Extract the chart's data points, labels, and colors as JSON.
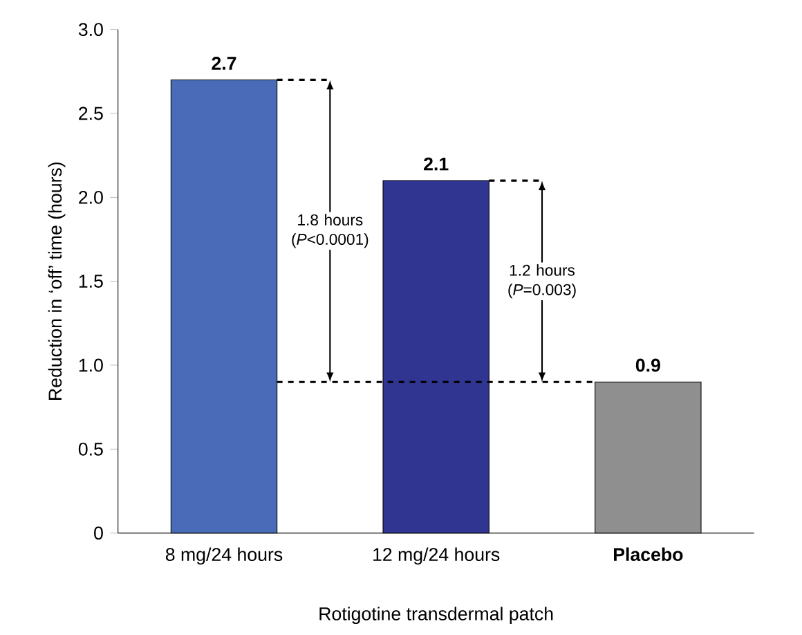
{
  "chart_data": {
    "type": "bar",
    "categories": [
      "8 mg/24 hours",
      "12 mg/24 hours",
      "**Placebo**"
    ],
    "values": [
      2.7,
      2.1,
      0.9
    ],
    "colors": [
      "#4a6cb8",
      "#2f3590",
      "#8f8f8f"
    ],
    "data_labels": true,
    "xlabel": "Rotigotine transdermal patch",
    "ylabel": "Reduction in ‘off’ time (hours)",
    "ylim": [
      0,
      3
    ],
    "yticks": [
      0,
      0.5,
      {
        "value": 1,
        "label": "1.0"
      },
      1.5,
      {
        "value": 2,
        "label": "2.0"
      },
      2.5,
      {
        "value": 3,
        "label": "3.0"
      }
    ],
    "annotations": [
      "1.8 hours (*P*<0.0001)",
      "1.2 hours (*P*=0.003)"
    ],
    "ref_lines": [
      {
        "axis": "y",
        "value": 0.9,
        "line_style": "dashed",
        "color": "#000000"
      }
    ]
  }
}
